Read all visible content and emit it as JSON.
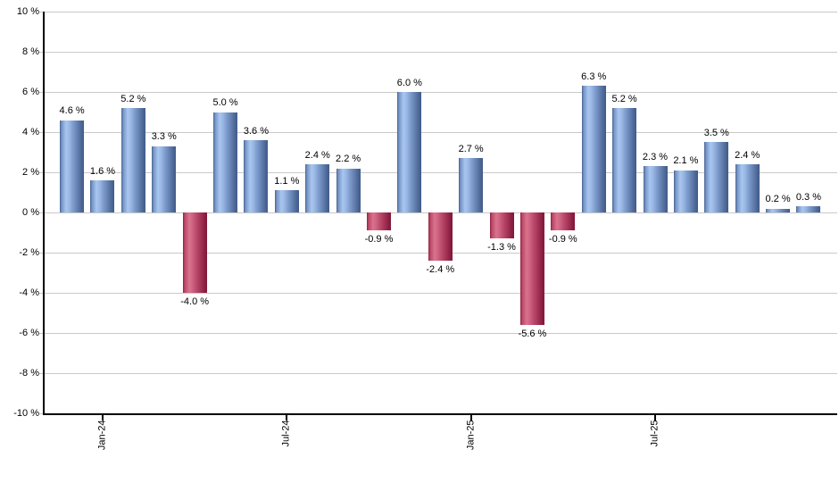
{
  "chart_data": {
    "type": "bar",
    "title": "",
    "xlabel": "",
    "ylabel": "",
    "ylim": [
      -10,
      10
    ],
    "grid": true,
    "legend": false,
    "values": [
      4.6,
      1.6,
      5.2,
      3.3,
      -4.0,
      5.0,
      3.6,
      1.1,
      2.4,
      2.2,
      -0.9,
      6.0,
      -2.4,
      2.7,
      -1.3,
      -5.6,
      -0.9,
      6.3,
      5.2,
      2.3,
      2.1,
      3.5,
      2.4,
      0.2,
      0.3
    ],
    "bar_labels": [
      "4.6 %",
      "1.6 %",
      "5.2 %",
      "3.3 %",
      "-4.0 %",
      "5.0 %",
      "3.6 %",
      "1.1 %",
      "2.4 %",
      "2.2 %",
      "-0.9 %",
      "6.0 %",
      "-2.4 %",
      "2.7 %",
      "-1.3 %",
      "-5.6 %",
      "-0.9 %",
      "6.3 %",
      "5.2 %",
      "2.3 %",
      "2.1 %",
      "3.5 %",
      "2.4 %",
      "0.2 %",
      "0.3 %"
    ],
    "x_tick_labels": [
      {
        "index": 1,
        "label": "Jan-24"
      },
      {
        "index": 7,
        "label": "Jul-24"
      },
      {
        "index": 13,
        "label": "Jan-25"
      },
      {
        "index": 19,
        "label": "Jul-25"
      }
    ],
    "y_tick_labels": [
      "10 %",
      "8 %",
      "6 %",
      "4 %",
      "2 %",
      "0 %",
      "-2 %",
      "-4 %",
      "-6 %",
      "-8 %",
      "-10 %"
    ],
    "y_tick_values": [
      10,
      8,
      6,
      4,
      2,
      0,
      -2,
      -4,
      -6,
      -8,
      -10
    ],
    "colors": {
      "positive_bar": "#7e9ccd",
      "positive_highlight": "#a9c6f0",
      "positive_edge": "#46618e",
      "negative_bar": "#bb4a6c",
      "negative_highlight": "#d9738e",
      "negative_edge": "#8e1e3f",
      "gridline": "#c9c9c9",
      "axis": "#000000",
      "text": "#000000"
    }
  }
}
